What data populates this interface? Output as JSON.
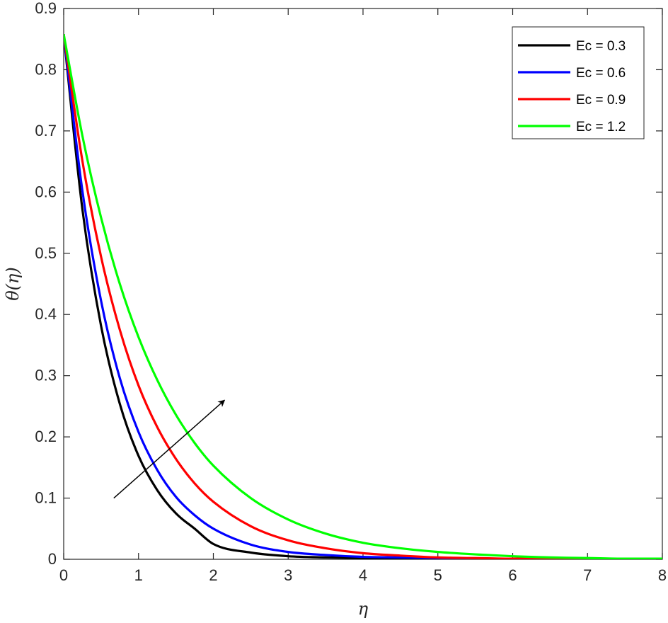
{
  "chart_data": {
    "type": "line",
    "xlabel": "η",
    "ylabel": "θ(η)",
    "xlim": [
      0,
      8
    ],
    "ylim": [
      0,
      0.9
    ],
    "xticks": [
      "0",
      "1",
      "2",
      "3",
      "4",
      "5",
      "6",
      "7",
      "8"
    ],
    "yticks": [
      "0",
      "0.1",
      "0.2",
      "0.3",
      "0.4",
      "0.5",
      "0.6",
      "0.7",
      "0.8",
      "0.9"
    ],
    "grid": false,
    "legend_position": "top-right",
    "x": [
      0,
      0.25,
      0.5,
      0.75,
      1,
      1.25,
      1.5,
      1.75,
      2,
      2.5,
      3,
      3.5,
      4,
      4.5,
      5,
      5.5,
      6,
      6.5,
      7,
      7.5,
      8
    ],
    "series": [
      {
        "name": "Ec = 0.3",
        "color": "#000000",
        "values": [
          0.858,
          0.572,
          0.381,
          0.254,
          0.169,
          0.113,
          0.075,
          0.05,
          0.025,
          0.011,
          0.005,
          0.003,
          0.002,
          0.001,
          0.001,
          0.001,
          0.0,
          0.0,
          0.0,
          0.0,
          0.0
        ]
      },
      {
        "name": "Ec = 0.6",
        "color": "#0000ff",
        "values": [
          0.858,
          0.602,
          0.422,
          0.296,
          0.208,
          0.146,
          0.102,
          0.072,
          0.05,
          0.024,
          0.012,
          0.007,
          0.004,
          0.003,
          0.002,
          0.001,
          0.001,
          0.0,
          0.0,
          0.0,
          0.0
        ]
      },
      {
        "name": "Ec = 0.9",
        "color": "#ff0000",
        "values": [
          0.858,
          0.651,
          0.494,
          0.375,
          0.284,
          0.216,
          0.164,
          0.124,
          0.094,
          0.054,
          0.031,
          0.018,
          0.01,
          0.006,
          0.003,
          0.002,
          0.001,
          0.001,
          0.0,
          0.0,
          0.0
        ]
      },
      {
        "name": "Ec = 1.2",
        "color": "#00ff00",
        "values": [
          0.858,
          0.692,
          0.558,
          0.45,
          0.363,
          0.293,
          0.236,
          0.19,
          0.153,
          0.1,
          0.065,
          0.042,
          0.027,
          0.018,
          0.012,
          0.008,
          0.005,
          0.003,
          0.002,
          0.001,
          0.001
        ]
      }
    ],
    "annotations": [
      {
        "type": "arrow",
        "from": [
          0.67,
          0.1
        ],
        "to": [
          2.15,
          0.26
        ],
        "color": "#000000"
      }
    ]
  }
}
